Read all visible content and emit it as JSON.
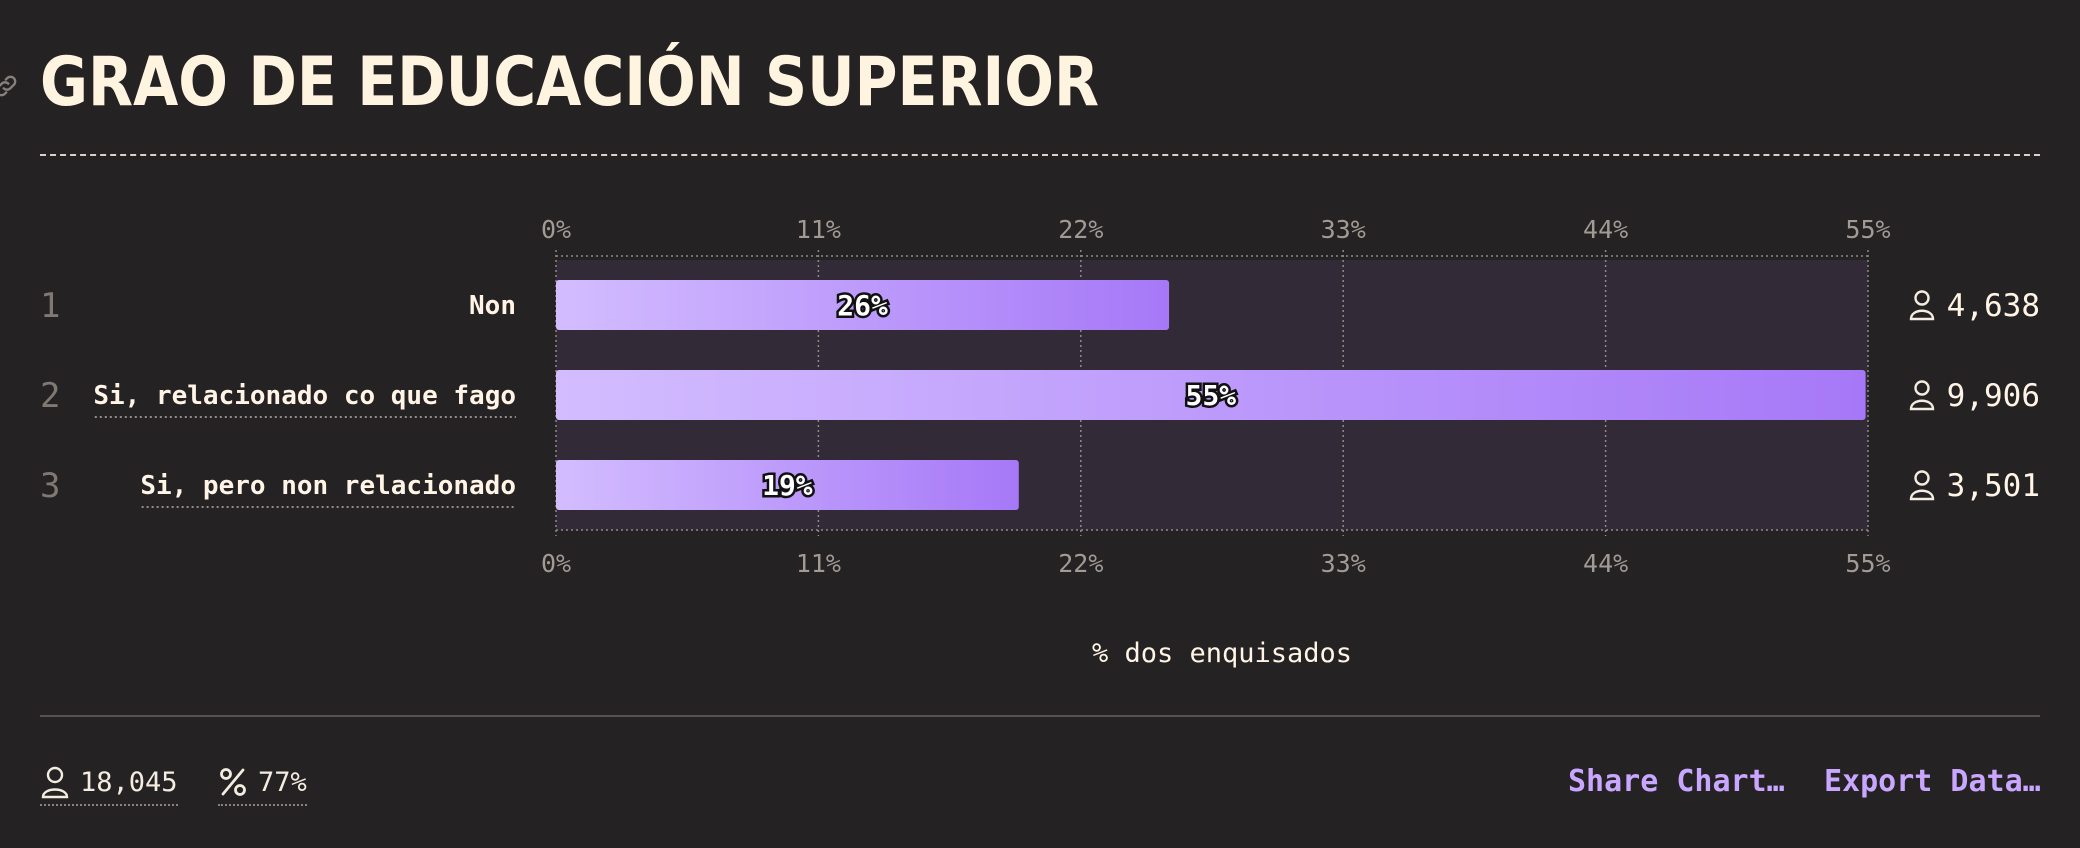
{
  "title": "GRAO DE EDUCACIÓN SUPERIOR",
  "colors": {
    "background": "#252223",
    "bar_start": "#d3bdff",
    "bar_end": "#a678f7",
    "track": "#322b37",
    "link": "#c9a6ff"
  },
  "icons": {
    "title_link": "link-icon",
    "respondents": "person-icon",
    "percent": "percent-icon"
  },
  "chart_data": {
    "type": "bar",
    "orientation": "horizontal",
    "xlabel": "% dos enquisados",
    "xlim": [
      0,
      55
    ],
    "ticks": [
      "0%",
      "11%",
      "22%",
      "33%",
      "44%",
      "55%"
    ],
    "tick_values": [
      0,
      11,
      22,
      33,
      44,
      55
    ],
    "grid": true,
    "categories": [
      "Non",
      "Si, relacionado co que fago",
      "Si, pero non relacionado"
    ],
    "ranks": [
      "1",
      "2",
      "3"
    ],
    "values": [
      25.7,
      54.9,
      19.4
    ],
    "value_labels": [
      "26%",
      "55%",
      "19%"
    ],
    "counts": [
      "4,638",
      "9,906",
      "3,501"
    ]
  },
  "footer": {
    "respondents": "18,045",
    "percent": "77%",
    "share_label": "Share Chart…",
    "export_label": "Export Data…"
  }
}
